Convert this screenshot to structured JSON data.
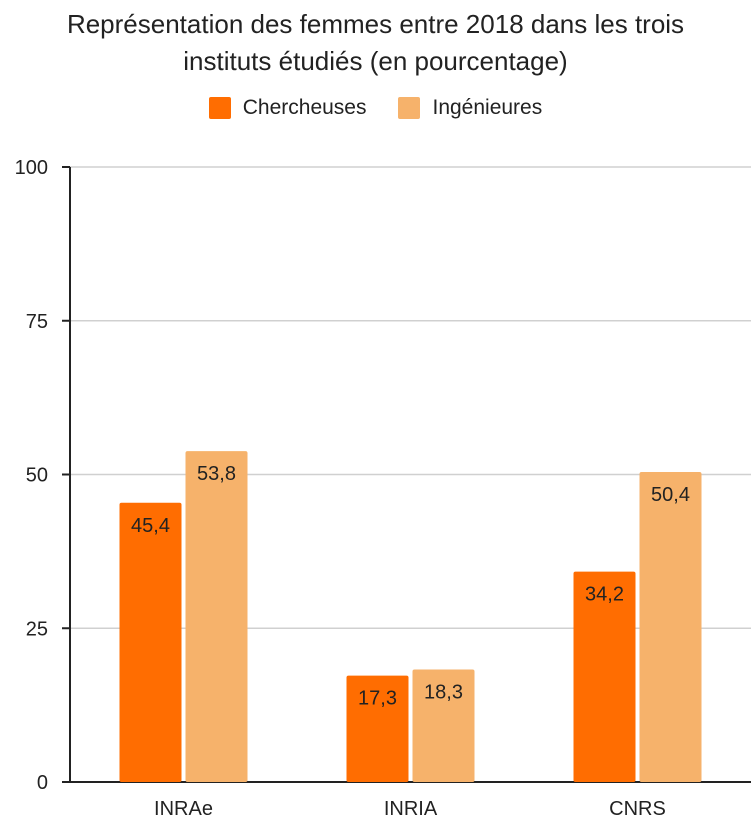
{
  "chart_data": {
    "type": "bar",
    "title_line1": "Représentation des femmes entre 2018 dans les trois",
    "title_line2": "instituts étudiés (en pourcentage)",
    "categories": [
      "INRAe",
      "INRIA",
      "CNRS"
    ],
    "series": [
      {
        "name": "Chercheuses",
        "values": [
          45.4,
          17.3,
          34.2
        ],
        "labels": [
          "45,4",
          "17,3",
          "34,2"
        ],
        "color": "#ff6d01"
      },
      {
        "name": "Ingénieures",
        "values": [
          53.8,
          18.3,
          50.4
        ],
        "labels": [
          "53,8",
          "18,3",
          "50,4"
        ],
        "color": "#f6b26b"
      }
    ],
    "ylim": [
      0,
      100
    ],
    "yticks": [
      0,
      25,
      50,
      75,
      100
    ],
    "grid": true,
    "legend_position": "top"
  }
}
